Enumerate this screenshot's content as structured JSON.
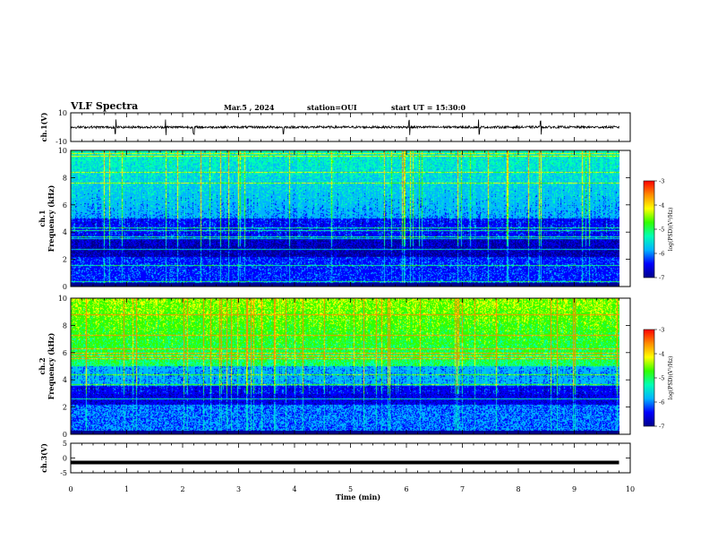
{
  "header": {
    "title": "VLF Spectra",
    "date": "Mar.5 , 2024",
    "station": "station=OUI",
    "start": "start UT = 15:30:0"
  },
  "colors": {
    "colormap": [
      "#00008b",
      "#0000ff",
      "#00b4ff",
      "#00ffb4",
      "#32ff00",
      "#ffff00",
      "#ff8c00",
      "#ff0000",
      "#ffffff"
    ]
  },
  "chart_data": [
    {
      "type": "line",
      "panel": "ch1-waveform",
      "ylabel": "ch.1(V)",
      "ylim": [
        -10,
        10
      ],
      "yticks": [
        "10",
        "-10"
      ],
      "x": [
        0,
        1,
        2,
        3,
        4,
        5,
        6,
        7,
        8,
        9,
        9.8
      ],
      "values": [
        0,
        0.1,
        -0.1,
        0,
        0.2,
        0,
        -0.1,
        0.1,
        0,
        0,
        0
      ],
      "spikes_min": [
        0.8,
        1.7,
        2.2,
        3.8,
        6.05,
        7.3,
        8.4
      ]
    },
    {
      "type": "heatmap",
      "panel": "ch1-spectrogram",
      "ylabel": "ch.1 Frequency (kHz)",
      "ylim": [
        0,
        10
      ],
      "yticks": [
        "0",
        "2",
        "4",
        "6",
        "8",
        "10"
      ],
      "colorbar_label": "log(PSD)(V²/Hz)",
      "colorbar_range": [
        -7,
        -3
      ],
      "colorbar_ticks": [
        "-3",
        "-4",
        "-5",
        "-6",
        "-7"
      ]
    },
    {
      "type": "heatmap",
      "panel": "ch2-spectrogram",
      "ylabel": "ch.2 Frequency (kHz)",
      "ylim": [
        0,
        10
      ],
      "yticks": [
        "0",
        "2",
        "4",
        "6",
        "8",
        "10"
      ],
      "colorbar_label": "log(PSD)(V²/Hz)",
      "colorbar_range": [
        -7,
        -3
      ],
      "colorbar_ticks": [
        "-3",
        "-4",
        "-5",
        "-6",
        "-7"
      ]
    },
    {
      "type": "line",
      "panel": "ch3-waveform",
      "ylabel": "ch.3(V)",
      "ylim": [
        -5,
        5
      ],
      "yticks": [
        "5",
        "0",
        "-5"
      ],
      "x": [
        0,
        9.8
      ],
      "values": [
        -1.5,
        -1.5
      ]
    }
  ],
  "xaxis": {
    "label": "Time (min)",
    "range": [
      0,
      10
    ],
    "ticks": [
      "0",
      "1",
      "2",
      "3",
      "4",
      "5",
      "6",
      "7",
      "8",
      "9",
      "10"
    ]
  }
}
